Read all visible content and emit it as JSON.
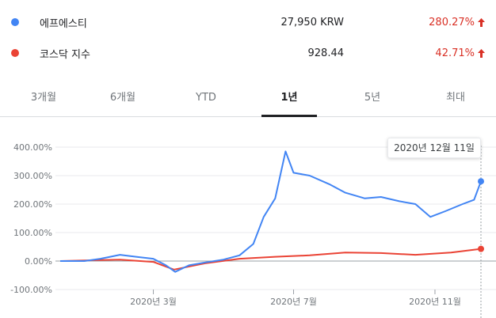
{
  "legend": [
    {
      "name": "에프에스티",
      "value": "27,950 KRW",
      "change": "280.27%",
      "color": "#4285f4"
    },
    {
      "name": "코스닥 지수",
      "value": "928.44",
      "change": "42.71%",
      "color": "#ea4335"
    }
  ],
  "tabs": [
    {
      "label": "3개월",
      "active": false
    },
    {
      "label": "6개월",
      "active": false
    },
    {
      "label": "YTD",
      "active": false
    },
    {
      "label": "1년",
      "active": true
    },
    {
      "label": "5년",
      "active": false
    },
    {
      "label": "최대",
      "active": false
    }
  ],
  "tooltip": "2020년 12월 11일",
  "chart_data": {
    "type": "line",
    "x_ticks": [
      "2020년 3월",
      "2020년 7월",
      "2020년 11월"
    ],
    "y_ticks": [
      "400.00%",
      "300.00%",
      "200.00%",
      "100.00%",
      "0.00%",
      "-100.00%"
    ],
    "ylim": [
      -100,
      400
    ],
    "x_range": [
      "2019-12-11",
      "2020-12-11"
    ],
    "grid": true,
    "series": [
      {
        "name": "에프에스티",
        "color": "#4285f4",
        "points": [
          [
            "2019-12-11",
            0
          ],
          [
            "2020-01-01",
            0
          ],
          [
            "2020-01-15",
            8
          ],
          [
            "2020-02-01",
            22
          ],
          [
            "2020-02-15",
            15
          ],
          [
            "2020-03-01",
            8
          ],
          [
            "2020-03-12",
            -15
          ],
          [
            "2020-03-20",
            -38
          ],
          [
            "2020-04-01",
            -15
          ],
          [
            "2020-04-15",
            -5
          ],
          [
            "2020-05-01",
            5
          ],
          [
            "2020-05-15",
            20
          ],
          [
            "2020-05-27",
            60
          ],
          [
            "2020-06-05",
            155
          ],
          [
            "2020-06-15",
            220
          ],
          [
            "2020-06-24",
            385
          ],
          [
            "2020-07-01",
            310
          ],
          [
            "2020-07-15",
            300
          ],
          [
            "2020-08-01",
            270
          ],
          [
            "2020-08-15",
            240
          ],
          [
            "2020-09-01",
            220
          ],
          [
            "2020-09-15",
            225
          ],
          [
            "2020-10-01",
            210
          ],
          [
            "2020-10-15",
            200
          ],
          [
            "2020-10-28",
            155
          ],
          [
            "2020-11-10",
            175
          ],
          [
            "2020-11-25",
            200
          ],
          [
            "2020-12-05",
            215
          ],
          [
            "2020-12-11",
            280
          ]
        ]
      },
      {
        "name": "코스닥 지수",
        "color": "#ea4335",
        "points": [
          [
            "2019-12-11",
            0
          ],
          [
            "2020-01-01",
            2
          ],
          [
            "2020-02-01",
            5
          ],
          [
            "2020-03-01",
            -3
          ],
          [
            "2020-03-19",
            -30
          ],
          [
            "2020-04-15",
            -8
          ],
          [
            "2020-05-15",
            8
          ],
          [
            "2020-06-15",
            15
          ],
          [
            "2020-07-15",
            20
          ],
          [
            "2020-08-15",
            30
          ],
          [
            "2020-09-15",
            28
          ],
          [
            "2020-10-15",
            22
          ],
          [
            "2020-11-15",
            30
          ],
          [
            "2020-12-11",
            42.71
          ]
        ]
      }
    ]
  }
}
